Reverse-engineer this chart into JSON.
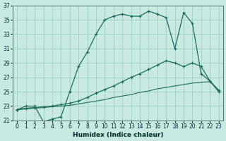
{
  "xlabel": "Humidex (Indice chaleur)",
  "xlim_min": -0.5,
  "xlim_max": 23.5,
  "ylim_min": 21,
  "ylim_max": 37,
  "xticks": [
    0,
    1,
    2,
    3,
    4,
    5,
    6,
    7,
    8,
    9,
    10,
    11,
    12,
    13,
    14,
    15,
    16,
    17,
    18,
    19,
    20,
    21,
    22,
    23
  ],
  "yticks": [
    21,
    23,
    25,
    27,
    29,
    31,
    33,
    35,
    37
  ],
  "bg_color": "#c8e8e2",
  "grid_color": "#a2cdc6",
  "line_color": "#1a6b5a",
  "curve1_x": [
    0,
    1,
    2,
    3,
    4,
    5,
    6,
    7,
    8,
    9,
    10,
    11,
    12,
    13,
    14,
    15,
    16,
    17,
    18,
    19,
    20,
    21,
    22,
    23
  ],
  "curve1_y": [
    22.5,
    23.0,
    23.0,
    20.8,
    21.2,
    21.5,
    25.0,
    28.5,
    30.5,
    33.0,
    35.0,
    35.5,
    35.8,
    35.5,
    35.5,
    36.2,
    35.8,
    35.3,
    31.0,
    36.0,
    34.5,
    27.5,
    26.5,
    25.0
  ],
  "curve2_x": [
    0,
    1,
    2,
    3,
    4,
    5,
    6,
    7,
    8,
    9,
    10,
    11,
    12,
    13,
    14,
    15,
    16,
    17,
    18,
    19,
    20,
    21,
    22,
    23
  ],
  "curve2_y": [
    22.5,
    22.7,
    22.8,
    22.9,
    23.0,
    23.2,
    23.4,
    23.7,
    24.2,
    24.8,
    25.3,
    25.8,
    26.4,
    27.0,
    27.5,
    28.1,
    28.7,
    29.3,
    29.0,
    28.5,
    29.0,
    28.5,
    26.5,
    25.2
  ],
  "curve3_x": [
    0,
    1,
    2,
    3,
    4,
    5,
    6,
    7,
    8,
    9,
    10,
    11,
    12,
    13,
    14,
    15,
    16,
    17,
    18,
    19,
    20,
    21,
    22,
    23
  ],
  "curve3_y": [
    22.5,
    22.6,
    22.7,
    22.8,
    22.9,
    23.0,
    23.1,
    23.3,
    23.5,
    23.7,
    23.9,
    24.2,
    24.4,
    24.6,
    24.9,
    25.1,
    25.4,
    25.6,
    25.8,
    26.0,
    26.2,
    26.3,
    26.4,
    25.2
  ]
}
